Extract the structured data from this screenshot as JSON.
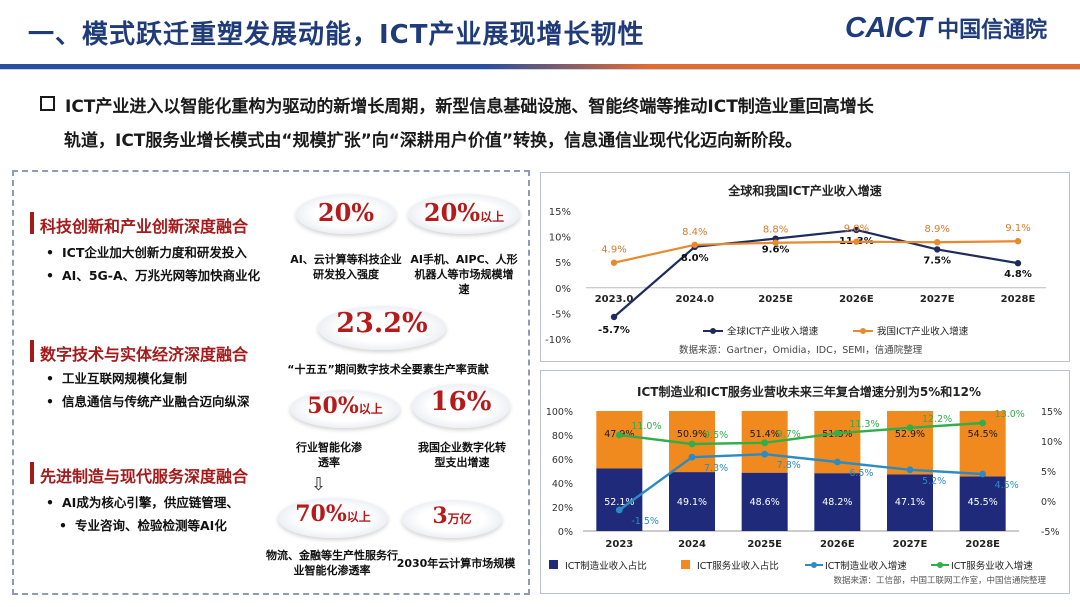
{
  "header": {
    "title": "一、模式跃迁重塑发展动能，ICT产业展现增长韧性",
    "logo_en": "CAICT",
    "logo_cn": "中国信通院"
  },
  "lead": {
    "line1": "ICT产业进入以智能化重构为驱动的新增长周期，新型信息基础设施、智能终端等推动ICT制造业重回高增长",
    "line2": "轨道，ICT服务业增长模式由“规模扩张”向“深耕用户价值”转换，信息通信业现代化迈向新阶段。"
  },
  "sections": [
    {
      "title": "科技创新和产业创新深度融合",
      "items": [
        "ICT企业加大创新力度和研发投入",
        "AI、5G-A、万兆光网等加快商业化"
      ]
    },
    {
      "title": "数字技术与实体经济深度融合",
      "items": [
        "工业互联网规模化复制",
        "信息通信与传统产业融合迈向纵深"
      ]
    },
    {
      "title": "先进制造与现代服务深度融合",
      "items": [
        "AI成为核心引擎，供应链管理、",
        "专业咨询、检验检测等AI化"
      ]
    }
  ],
  "stats": [
    {
      "value": "20%",
      "suffix": "",
      "caption": "AI、云计算等科技企业研发投入强度"
    },
    {
      "value": "20%",
      "suffix": "以上",
      "caption": "AI手机、AIPC、人形机器人等市场规模增速"
    },
    {
      "value": "23.2%",
      "suffix": "",
      "caption": "“十五五”期间数字技术全要素生产率贡献"
    },
    {
      "value": "50%",
      "suffix": "以上",
      "caption": "行业智能化渗透率"
    },
    {
      "value": "16%",
      "suffix": "",
      "caption": "我国企业数字化转型支出增速"
    },
    {
      "value": "70%",
      "suffix": "以上",
      "caption": "物流、金融等生产性服务行业智能化渗透率"
    },
    {
      "value": "3",
      "suffix": "万亿",
      "caption": "2030年云计算市场规模"
    }
  ],
  "chart_data": [
    {
      "type": "line",
      "title": "全球和我国ICT产业收入增速",
      "categories": [
        "2023.0",
        "2024.0",
        "2025E",
        "2026E",
        "2027E",
        "2028E"
      ],
      "yticks": [
        "15%",
        "10%",
        "5%",
        "0%",
        "-5%",
        "-10%"
      ],
      "ylim": [
        -10,
        15
      ],
      "series": [
        {
          "name": "全球ICT产业收入增速",
          "color": "#1f2b5c",
          "values": [
            -5.7,
            8.0,
            9.6,
            11.3,
            7.5,
            4.8
          ],
          "labels": [
            "-5.7%",
            "8.0%",
            "9.6%",
            "11.3%",
            "7.5%",
            "4.8%"
          ]
        },
        {
          "name": "我国ICT产业收入增速",
          "color": "#e8892e",
          "values": [
            4.9,
            8.4,
            8.8,
            9.0,
            8.9,
            9.1
          ],
          "labels": [
            "4.9%",
            "8.4%",
            "8.8%",
            "9.0%",
            "8.9%",
            "9.1%"
          ]
        }
      ],
      "source": "数据来源：Gartner，Omidia，IDC，SEMI，信通院整理",
      "grid": false,
      "legend": "bottom"
    },
    {
      "type": "bar",
      "title": "ICT制造业和ICT服务业营收未来三年复合增速分别为5%和12%",
      "categories": [
        "2023",
        "2024",
        "2025E",
        "2026E",
        "2027E",
        "2028E"
      ],
      "y_left_ticks": [
        "100%",
        "80%",
        "60%",
        "40%",
        "20%",
        "0%"
      ],
      "y_right_ticks": [
        "15%",
        "10%",
        "5%",
        "0%",
        "-5%"
      ],
      "ylim_left": [
        0,
        100
      ],
      "ylim_right": [
        -5,
        15
      ],
      "stacked_bars": [
        {
          "name": "ICT制造业收入占比",
          "color": "#1f2a7a",
          "values": [
            52.1,
            49.1,
            48.6,
            48.2,
            47.1,
            45.5
          ],
          "labels": [
            "52.1%",
            "49.1%",
            "48.6%",
            "48.2%",
            "47.1%",
            "45.5%"
          ]
        },
        {
          "name": "ICT服务业收入占比",
          "color": "#f08a1e",
          "values": [
            47.9,
            50.9,
            51.4,
            51.8,
            52.9,
            54.5
          ],
          "labels": [
            "47.9%",
            "50.9%",
            "51.4%",
            "51.8%",
            "52.9%",
            "54.5%"
          ]
        }
      ],
      "lines": [
        {
          "name": "ICT制造业收入增速",
          "color": "#2d8bc4",
          "values": [
            -1.5,
            7.3,
            7.8,
            6.5,
            5.2,
            4.5
          ],
          "labels": [
            "-1.5%",
            "7.3%",
            "7.8%",
            "6.5%",
            "5.2%",
            "4.5%"
          ]
        },
        {
          "name": "ICT服务业收入增速",
          "color": "#2fae4a",
          "values": [
            11.0,
            9.5,
            9.7,
            11.3,
            12.2,
            13.0
          ],
          "labels": [
            "11.0%",
            "9.5%",
            "9.7%",
            "11.3%",
            "12.2%",
            "13.0%"
          ]
        }
      ],
      "source": "数据来源：工信部，中国工联网工作室，中国信通院整理",
      "grid": false,
      "legend": "bottom"
    }
  ]
}
